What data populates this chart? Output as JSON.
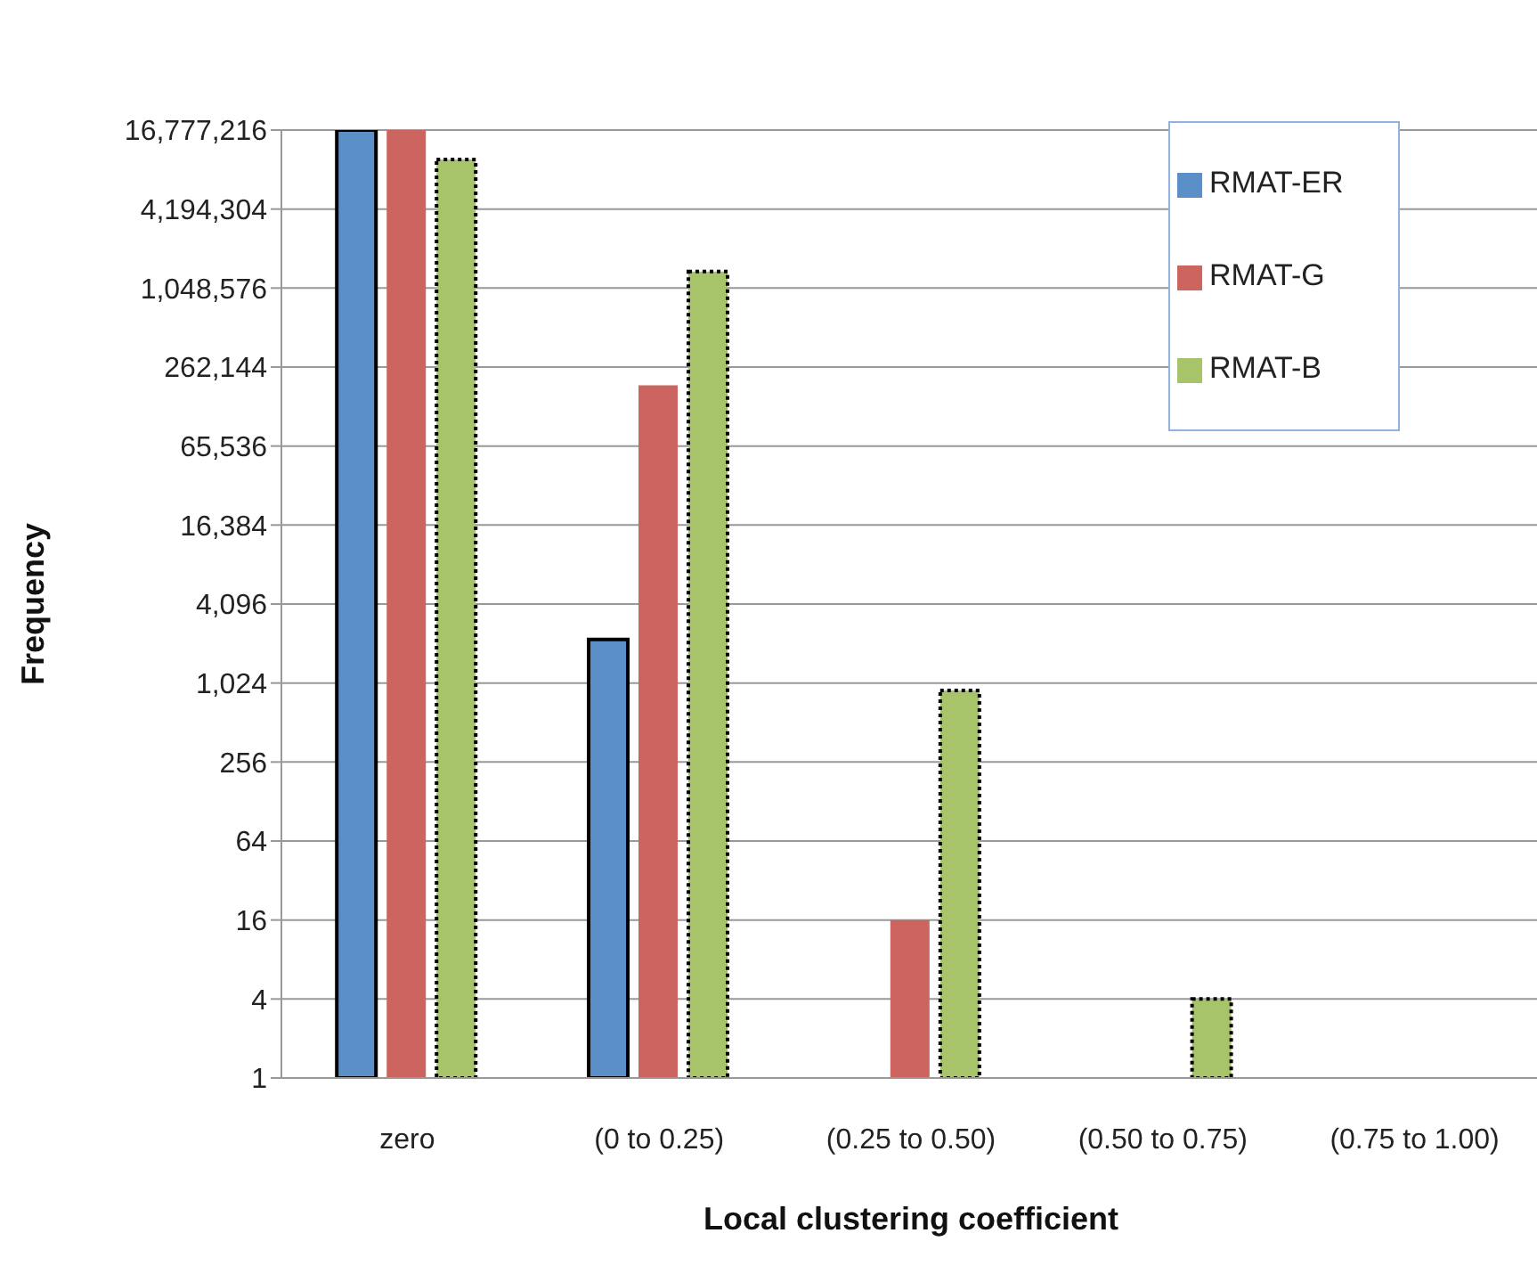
{
  "chart_data": {
    "type": "bar",
    "xlabel": "Local clustering coefficient",
    "ylabel": "Frequency",
    "categories": [
      "zero",
      "(0 to 0.25)",
      "(0.25 to 0.50)",
      "(0.50 to 0.75)",
      "(0.75 to 1.00)"
    ],
    "series": [
      {
        "name": "RMAT-ER",
        "color": "#5b8fc7",
        "values": [
          16777216,
          2200,
          null,
          null,
          null
        ]
      },
      {
        "name": "RMAT-G",
        "color": "#cc6560",
        "values": [
          16777216,
          190000,
          16,
          null,
          null
        ]
      },
      {
        "name": "RMAT-B",
        "color": "#a8c46a",
        "values": [
          10000000,
          1400000,
          900,
          4,
          null
        ]
      }
    ],
    "log": true,
    "ylim": [
      1,
      16777216
    ],
    "yticks": [
      1,
      4,
      16,
      64,
      256,
      {
        "value": 1024,
        "label": "1,024"
      },
      {
        "value": 4096,
        "label": "4,096"
      },
      {
        "value": 16384,
        "label": "16,384"
      },
      {
        "value": 65536,
        "label": "65,536"
      },
      {
        "value": 262144,
        "label": "262,144"
      },
      {
        "value": 1048576,
        "label": "1,048,576"
      },
      {
        "value": 4194304,
        "label": "4,194,304"
      },
      {
        "value": 16777216,
        "label": "16,777,216"
      }
    ],
    "grid": "y",
    "legend": "top right"
  }
}
